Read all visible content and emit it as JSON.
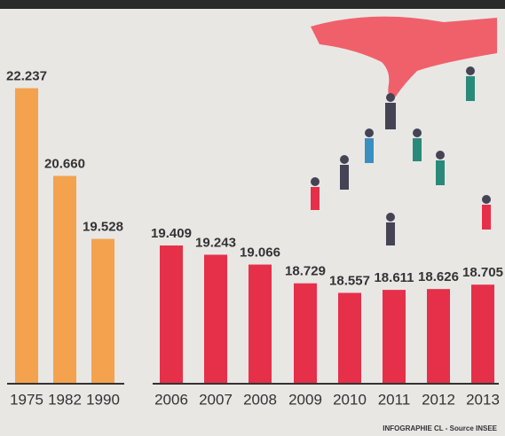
{
  "chart_data": {
    "type": "bar",
    "categories": [
      "1975",
      "1982",
      "1990",
      "2006",
      "2007",
      "2008",
      "2009",
      "2010",
      "2011",
      "2012",
      "2013"
    ],
    "values": [
      22.237,
      20.66,
      19.528,
      19.409,
      19.243,
      19.066,
      18.729,
      18.557,
      18.611,
      18.626,
      18.705
    ],
    "value_labels": [
      "22.237",
      "20.660",
      "19.528",
      "19.409",
      "19.243",
      "19.066",
      "18.729",
      "18.557",
      "18.611",
      "18.626",
      "18.705"
    ],
    "colors": [
      "#f4a24e",
      "#f4a24e",
      "#f4a24e",
      "#e63049",
      "#e63049",
      "#e63049",
      "#e63049",
      "#e63049",
      "#e63049",
      "#e63049",
      "#e63049"
    ],
    "ylim": [
      16.94,
      22.5
    ],
    "footer": "INFOGRAPHIE CL - Source INSEE"
  }
}
